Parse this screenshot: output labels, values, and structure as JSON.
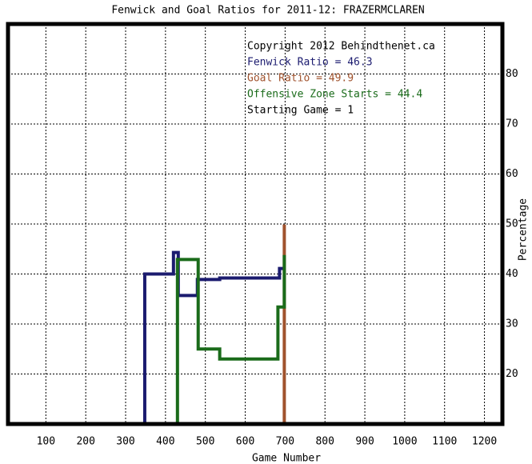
{
  "chart_data": {
    "type": "line",
    "title": "Fenwick and Goal Ratios for 2011-12: FRAZERMCLAREN",
    "x_label": "Game Number",
    "y_label": "Percentage",
    "annotations": [
      "Copyright 2012 Behindthenet.ca",
      "Starting Game = 1"
    ],
    "series": [
      {
        "name": "Fenwick Ratio = 46.3",
        "color": "#1b1b6f",
        "step": true,
        "x": [
          348,
          348,
          420,
          420,
          432,
          432,
          480,
          480,
          536,
          536,
          686,
          686,
          698
        ],
        "values": [
          10,
          40,
          40,
          44.3,
          44.3,
          35.7,
          35.7,
          38.9,
          38.9,
          39.2,
          39.2,
          41.1,
          41.1
        ]
      },
      {
        "name": "Goal Ratio = 49.9",
        "color": "#a0522d",
        "x": [
          698,
          698
        ],
        "values": [
          10,
          49.9
        ]
      },
      {
        "name": "Offensive Zone Starts = 44.4",
        "color": "#1a6b1a",
        "x": [
          430,
          430,
          482,
          482,
          536,
          536,
          682,
          682,
          698,
          698
        ],
        "values": [
          10,
          42.9,
          42.9,
          25,
          25,
          23,
          23,
          33.4,
          33.4,
          43.8
        ]
      }
    ],
    "xlim": [
      5,
      1245
    ],
    "ylim": [
      10,
      90
    ],
    "xticks": [
      100,
      200,
      300,
      400,
      500,
      600,
      700,
      800,
      900,
      1000,
      1100,
      1200
    ],
    "yticks": [
      20,
      30,
      40,
      50,
      60,
      70,
      80
    ],
    "grid": true
  }
}
